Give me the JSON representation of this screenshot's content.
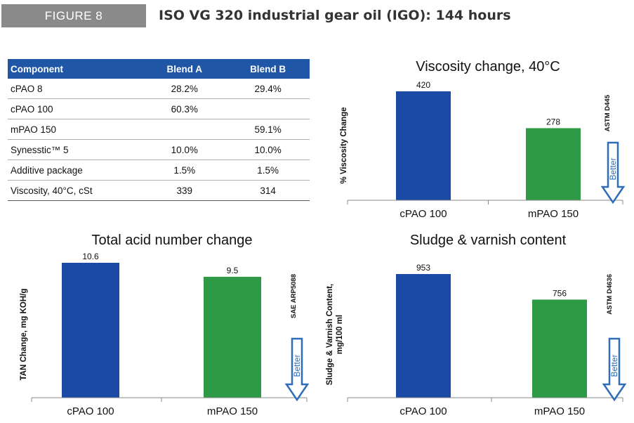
{
  "header": {
    "figure_label": "FIGURE 8",
    "title": "ISO VG 320 industrial gear oil (IGO): 144 hours"
  },
  "table": {
    "columns": [
      "Component",
      "Blend A",
      "Blend B"
    ],
    "rows": [
      [
        "cPAO 8",
        "28.2%",
        "29.4%"
      ],
      [
        "cPAO 100",
        "60.3%",
        ""
      ],
      [
        "mPAO 150",
        "",
        "59.1%"
      ],
      [
        "Synesstic™ 5",
        "10.0%",
        "10.0%"
      ],
      [
        "Additive package",
        "1.5%",
        "1.5%"
      ],
      [
        "Viscosity, 40°C, cSt",
        "339",
        "314"
      ]
    ]
  },
  "colors": {
    "header_blue": "#1f57a6",
    "bar_blue": "#1a4aa6",
    "bar_green": "#2e9a46",
    "arrow_blue": "#2f6db8"
  },
  "chart_data": [
    {
      "type": "bar",
      "title": "Viscosity change, 40°C",
      "ylabel": "% Viscosity Change",
      "categories": [
        "cPAO 100",
        "mPAO 150"
      ],
      "values": [
        420,
        278
      ],
      "ylim": [
        0,
        420
      ],
      "standard": "ASTM D445",
      "arrow_label": "Better",
      "grid": false
    },
    {
      "type": "bar",
      "title": "Total acid number change",
      "ylabel": "TAN Change, mg KOH/g",
      "categories": [
        "cPAO 100",
        "mPAO 150"
      ],
      "values": [
        10.6,
        9.5
      ],
      "ylim": [
        0,
        10.6
      ],
      "standard": "SAE ARP5088",
      "arrow_label": "Better",
      "grid": false
    },
    {
      "type": "bar",
      "title": "Sludge & varnish content",
      "ylabel": "Sludge & Varnish Content, mg/100 ml",
      "categories": [
        "cPAO 100",
        "mPAO 150"
      ],
      "values": [
        953,
        756
      ],
      "ylim": [
        0,
        953
      ],
      "standard": "ASTM D4636",
      "arrow_label": "Better",
      "grid": false
    }
  ]
}
